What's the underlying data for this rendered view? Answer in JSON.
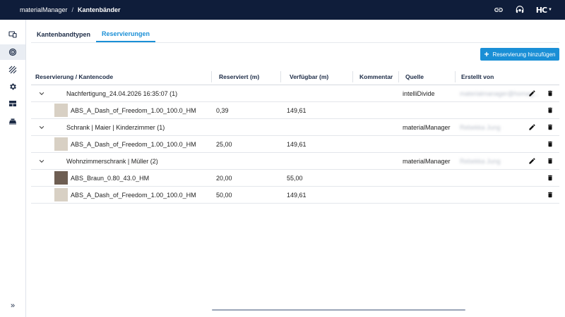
{
  "breadcrumb": {
    "app": "materialManager",
    "separator": "/",
    "current": "Kantenbänder"
  },
  "header": {
    "icons": [
      "link-icon",
      "support-icon"
    ],
    "brand": "HC"
  },
  "sidebar": {
    "items": [
      {
        "icon": "devices-icon",
        "active": false
      },
      {
        "icon": "edgeband-roll-icon",
        "active": true
      },
      {
        "icon": "hatch-pattern-icon",
        "active": false
      },
      {
        "icon": "gear-icon",
        "active": false
      },
      {
        "icon": "panel-layout-icon",
        "active": false
      },
      {
        "icon": "machine-icon",
        "active": false
      }
    ],
    "expand_icon": "double-chevron-right-icon",
    "expand_label": "»"
  },
  "tabs": [
    {
      "label": "Kantenbandtypen",
      "active": false
    },
    {
      "label": "Reservierungen",
      "active": true
    }
  ],
  "add_button": {
    "label": "Reservierung hinzufügen",
    "icon": "plus-icon"
  },
  "table": {
    "columns": [
      "Reservierung / Kantencode",
      "Reserviert (m)",
      "Verfügbar (m)",
      "Kommentar",
      "Quelle",
      "Erstellt von"
    ],
    "groups": [
      {
        "name": "Nachfertigung_24.04.2026 16:35:07 (1)",
        "source": "intelliDivide",
        "creator": "materialmanager@homag...",
        "items": [
          {
            "code": "ABS_A_Dash_of_Freedom_1.00_100.0_HM",
            "reserved": "0,39",
            "available": "149,61",
            "swatch": "#d8d0c4"
          }
        ]
      },
      {
        "name": "Schrank | Maier | Kinderzimmer (1)",
        "source": "materialManager",
        "creator": "Rebekka Jung",
        "items": [
          {
            "code": "ABS_A_Dash_of_Freedom_1.00_100.0_HM",
            "reserved": "25,00",
            "available": "149,61",
            "swatch": "#d8d0c4"
          }
        ]
      },
      {
        "name": "Wohnzimmerschrank | Müller (2)",
        "source": "materialManager",
        "creator": "Rebekka Jung",
        "items": [
          {
            "code": "ABS_Braun_0.80_43.0_HM",
            "reserved": "20,00",
            "available": "55,00",
            "swatch": "#6e5e52"
          },
          {
            "code": "ABS_A_Dash_of_Freedom_1.00_100.0_HM",
            "reserved": "50,00",
            "available": "149,61",
            "swatch": "#d8d0c4"
          }
        ]
      }
    ]
  },
  "colors": {
    "topbar": "#0f1d3a",
    "accent": "#1a8fd6",
    "text": "#222222"
  }
}
